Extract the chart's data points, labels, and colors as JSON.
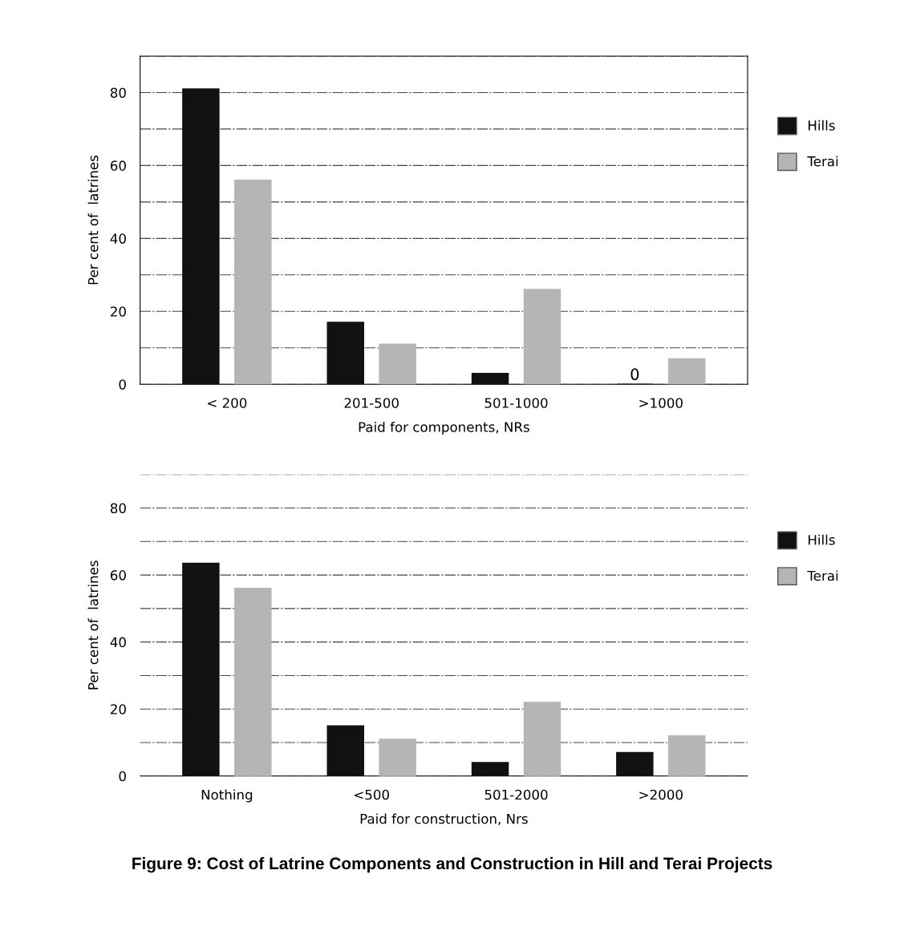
{
  "chart_data": [
    {
      "type": "bar",
      "xlabel": "Paid for components, NRs",
      "ylabel": "Per cent of  latrines",
      "categories": [
        "< 200",
        "201-500",
        "501-1000",
        ">1000"
      ],
      "series": [
        {
          "name": "Hills",
          "color": "#111111",
          "values": [
            81,
            17,
            3,
            0
          ],
          "value_labels": [
            null,
            null,
            null,
            "0"
          ]
        },
        {
          "name": "Terai",
          "color": "#b5b5b5",
          "values": [
            56,
            11,
            26,
            7
          ]
        }
      ],
      "ylim": [
        0,
        90
      ],
      "yticks": [
        0,
        {
          "value": 10,
          "label": null
        },
        20,
        {
          "value": 30,
          "label": null
        },
        40,
        {
          "value": 50,
          "label": null
        },
        60,
        {
          "value": 70,
          "label": null
        },
        80,
        {
          "value": 90,
          "label": null
        }
      ],
      "grid": "y",
      "legend": "right"
    },
    {
      "type": "bar",
      "xlabel": "Paid for construction, Nrs",
      "ylabel": "Per cent of  latrines",
      "categories": [
        "Nothing",
        "<500",
        "501-2000",
        ">2000"
      ],
      "series": [
        {
          "name": "Hills",
          "color": "#111111",
          "values": [
            63.5,
            15,
            4,
            7
          ]
        },
        {
          "name": "Terai",
          "color": "#b5b5b5",
          "values": [
            56,
            11,
            22,
            12
          ]
        }
      ],
      "ylim": [
        0,
        90
      ],
      "yticks": [
        0,
        {
          "value": 10,
          "label": null
        },
        20,
        {
          "value": 30,
          "label": null
        },
        40,
        {
          "value": 50,
          "label": null
        },
        60,
        {
          "value": 70,
          "label": null
        },
        80,
        {
          "value": 90,
          "label": null
        }
      ],
      "grid": "y",
      "legend": "right",
      "annotations": [
        "Figure 9: Cost of Latrine Components and Construction in Hill and Terai Projects"
      ]
    }
  ]
}
